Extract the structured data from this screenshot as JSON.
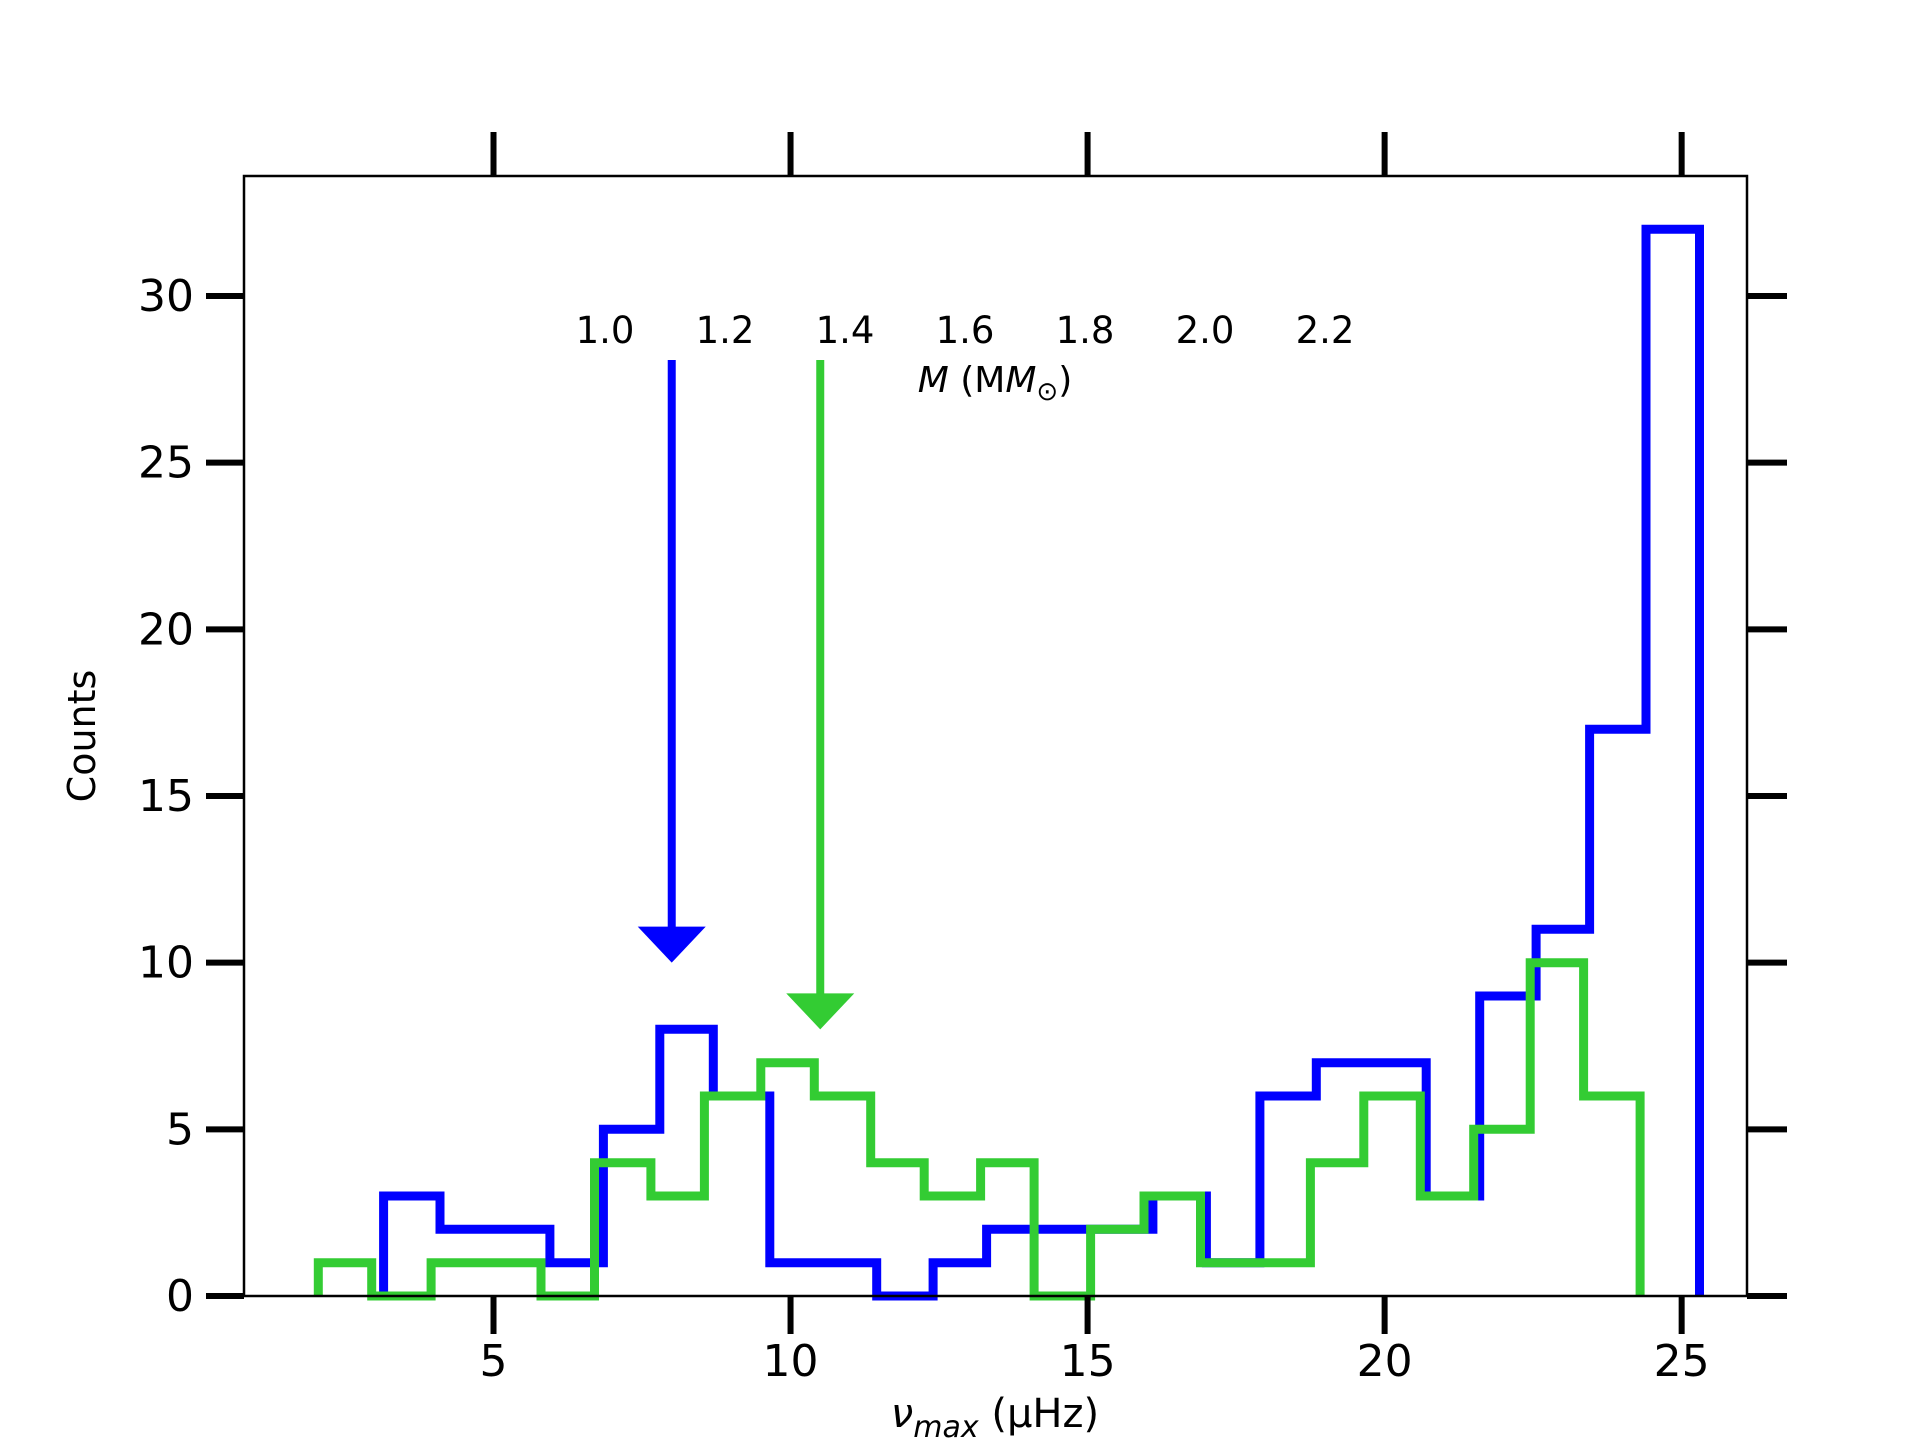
{
  "chart_data": {
    "type": "histogram",
    "xlabel_main": "ν",
    "xlabel_sub": "max",
    "xlabel_unit": " (μHz)",
    "ylabel": "Counts",
    "xlim": [
      0.8,
      26.1
    ],
    "ylim": [
      0,
      33.6
    ],
    "xticks": [
      5,
      10,
      15,
      20,
      25
    ],
    "yticks": [
      0,
      5,
      10,
      15,
      20,
      25,
      30
    ],
    "xtick_labels": [
      "5",
      "10",
      "15",
      "20",
      "25"
    ],
    "ytick_labels": [
      "0",
      "5",
      "10",
      "15",
      "20",
      "25",
      "30"
    ],
    "grid": false,
    "colorbar": {
      "colormap": "jet",
      "ticks": [
        "1.0",
        "1.2",
        "1.4",
        "1.6",
        "1.8",
        "2.0",
        "2.2"
      ],
      "tick_values": [
        1.0,
        1.2,
        1.4,
        1.6,
        1.8,
        2.0,
        2.2
      ],
      "range": [
        1.0,
        2.3
      ],
      "label_main": "M",
      "label_unit": " (M",
      "label_sun": "⊙",
      "label_close": ")"
    },
    "series": [
      {
        "color": "#0000ff",
        "bin_edges": [
          3.15,
          4.1,
          5.0,
          5.95,
          6.85,
          7.8,
          8.7,
          9.65,
          10.55,
          11.45,
          12.4,
          13.3,
          14.25,
          15.15,
          16.1,
          17.0,
          17.9,
          18.85,
          19.75,
          20.7,
          21.6,
          22.55,
          23.45,
          24.4,
          25.3
        ],
        "counts": [
          3,
          2,
          2,
          1,
          5,
          8,
          6,
          1,
          1,
          0,
          1,
          2,
          2,
          2,
          3,
          1,
          6,
          7,
          7,
          3,
          9,
          11,
          17,
          32
        ],
        "arrow_x": 8.0,
        "arrow_tip_y": 10
      },
      {
        "color": "#33cc33",
        "bin_edges": [
          2.05,
          2.95,
          3.95,
          4.85,
          5.8,
          6.7,
          7.65,
          8.55,
          9.5,
          10.4,
          11.35,
          12.25,
          13.2,
          14.1,
          15.05,
          15.95,
          16.9,
          17.8,
          18.75,
          19.65,
          20.6,
          21.5,
          22.45,
          23.35,
          24.3
        ],
        "counts": [
          1,
          0,
          1,
          1,
          0,
          4,
          3,
          6,
          7,
          6,
          4,
          3,
          4,
          0,
          2,
          3,
          1,
          1,
          4,
          6,
          3,
          5,
          10,
          6
        ],
        "arrow_x": 10.5,
        "arrow_tip_y": 8
      }
    ]
  }
}
